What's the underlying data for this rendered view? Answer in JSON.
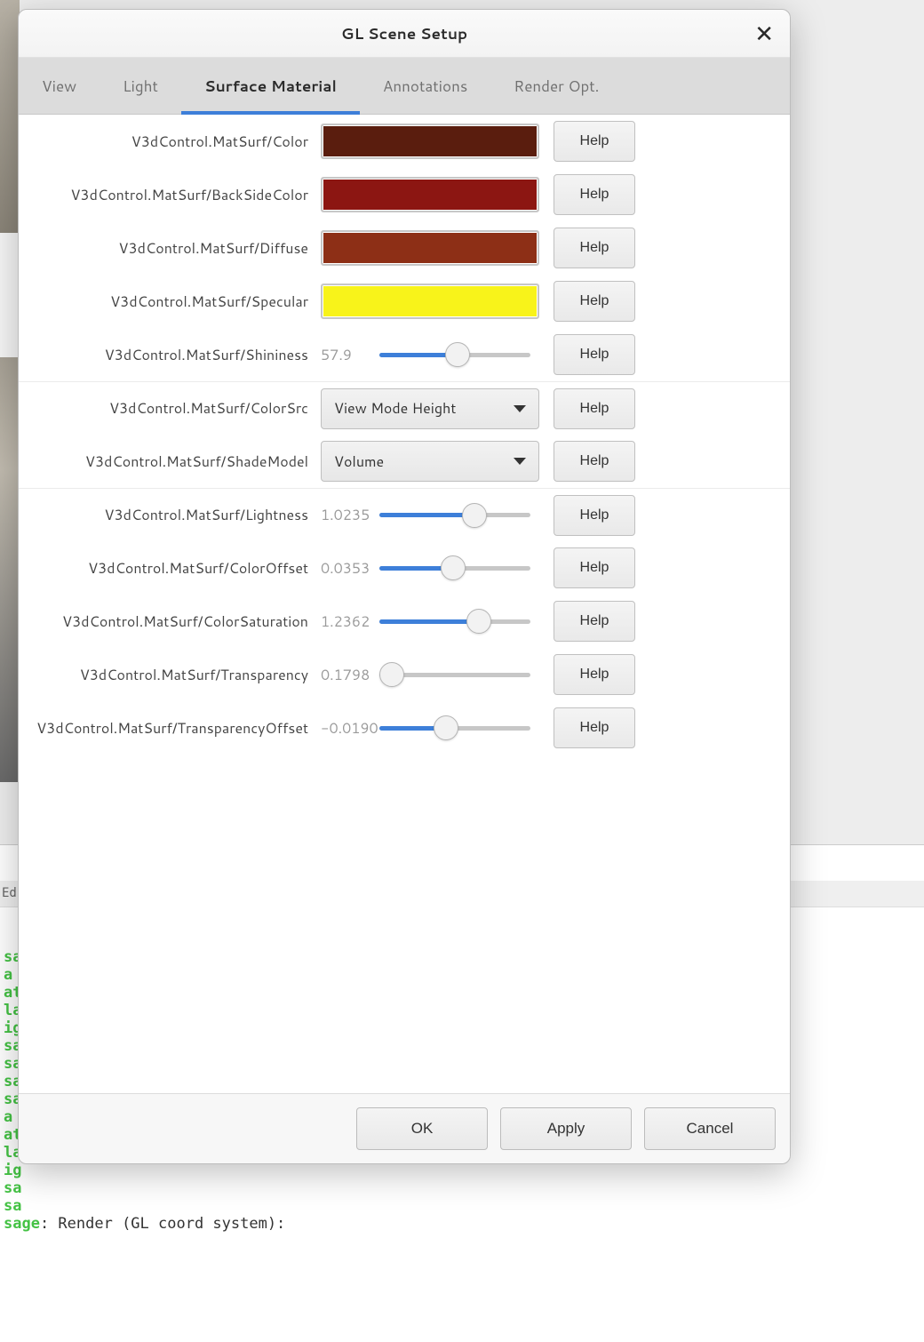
{
  "dialog": {
    "title": "GL Scene Setup",
    "tabs": {
      "view": "View",
      "light": "Light",
      "surface_material": "Surface Material",
      "annotations": "Annotations",
      "render_opt": "Render Opt."
    },
    "help_label": "Help",
    "footer": {
      "ok": "OK",
      "apply": "Apply",
      "cancel": "Cancel"
    }
  },
  "rows": {
    "color": {
      "label": "V3dControl.MatSurf/Color",
      "swatch": "#5a1d0e"
    },
    "backside": {
      "label": "V3dControl.MatSurf/BackSideColor",
      "swatch": "#8c1612"
    },
    "diffuse": {
      "label": "V3dControl.MatSurf/Diffuse",
      "swatch": "#8d2f16"
    },
    "specular": {
      "label": "V3dControl.MatSurf/Specular",
      "swatch": "#f8f31a"
    },
    "shininess": {
      "label": "V3dControl.MatSurf/Shininess",
      "value": "57.9",
      "pct": 52
    },
    "colorsrc": {
      "label": "V3dControl.MatSurf/ColorSrc",
      "option": "View Mode Height"
    },
    "shademodel": {
      "label": "V3dControl.MatSurf/ShadeModel",
      "option": "Volume"
    },
    "lightness": {
      "label": "V3dControl.MatSurf/Lightness",
      "value": "1.0235",
      "pct": 63
    },
    "coloroffset": {
      "label": "V3dControl.MatSurf/ColorOffset",
      "value": "0.0353",
      "pct": 49
    },
    "colorsaturation": {
      "label": "V3dControl.MatSurf/ColorSaturation",
      "value": "1.2362",
      "pct": 66
    },
    "transparency": {
      "label": "V3dControl.MatSurf/Transparency",
      "value": "0.1798",
      "pct": 8
    },
    "transparencyoff": {
      "label": "V3dControl.MatSurf/TransparencyOffset",
      "value": "-0.0190",
      "pct": 44
    }
  },
  "console": {
    "header": "Ed",
    "lines": [
      {
        "pre": "sa",
        "rest": ""
      },
      {
        "pre": "a",
        "rest": ""
      },
      {
        "pre": "at",
        "rest": ""
      },
      {
        "pre": "la",
        "rest": ""
      },
      {
        "pre": "ig",
        "rest": ""
      },
      {
        "pre": "sa",
        "rest": ""
      },
      {
        "pre": "sa",
        "rest": ""
      },
      {
        "pre": "sa",
        "rest": ""
      },
      {
        "pre": "sa",
        "rest": ""
      },
      {
        "pre": "a",
        "rest": ""
      },
      {
        "pre": "at",
        "rest": ""
      },
      {
        "pre": "la",
        "rest": ""
      },
      {
        "pre": "ig",
        "rest": ""
      },
      {
        "pre": "sa",
        "rest": ""
      },
      {
        "pre": "sa",
        "rest": ""
      },
      {
        "pre": "sage",
        "rest": ": Render (GL coord system):"
      }
    ]
  },
  "style": {
    "accent": "#3d7fd9",
    "track": "#c7c7c7",
    "text_muted": "#9a9a9a"
  }
}
